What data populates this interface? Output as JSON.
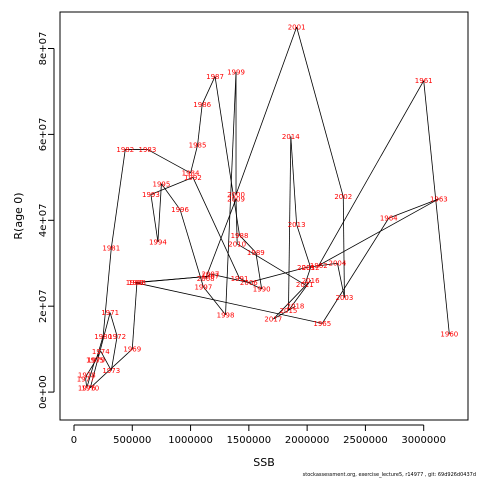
{
  "chart_data": {
    "type": "line",
    "title": "",
    "xlabel": "SSB",
    "ylabel": "R(age 0)",
    "xlim": [
      -120000,
      3380000
    ],
    "ylim": [
      -6500000,
      88500000
    ],
    "x_ticks": [
      0,
      500000,
      1000000,
      1500000,
      2000000,
      2500000,
      3000000
    ],
    "x_tick_labels": [
      "0",
      "500000",
      "1000000",
      "1500000",
      "2000000",
      "2500000",
      "3000000"
    ],
    "y_ticks": [
      0,
      20000000,
      40000000,
      60000000,
      80000000
    ],
    "y_tick_labels": [
      "0e+00",
      "2e+07",
      "4e+07",
      "6e+07",
      "8e+07"
    ],
    "grid": false,
    "series": [
      {
        "points": [
          {
            "label": "1960",
            "x": 3220000,
            "y": 13500000
          },
          {
            "label": "1961",
            "x": 3000000,
            "y": 72500000
          },
          {
            "label": "1962",
            "x": 2100000,
            "y": 29500000
          },
          {
            "label": "1963",
            "x": 3130000,
            "y": 45000000
          },
          {
            "label": "1964",
            "x": 2700000,
            "y": 40500000
          },
          {
            "label": "1965",
            "x": 2130000,
            "y": 16000000
          },
          {
            "label": "1966",
            "x": 520000,
            "y": 25500000
          },
          {
            "label": "1967",
            "x": 1170000,
            "y": 27000000
          },
          {
            "label": "1968",
            "x": 540000,
            "y": 25500000
          },
          {
            "label": "1969",
            "x": 500000,
            "y": 10000000
          },
          {
            "label": "1970",
            "x": 140000,
            "y": 1000000
          },
          {
            "label": "1971",
            "x": 310000,
            "y": 18500000
          },
          {
            "label": "1972",
            "x": 370000,
            "y": 13000000
          },
          {
            "label": "1973",
            "x": 320000,
            "y": 5000000
          },
          {
            "label": "1974",
            "x": 230000,
            "y": 9500000
          },
          {
            "label": "1975",
            "x": 180000,
            "y": 7500000
          },
          {
            "label": "1976",
            "x": 110000,
            "y": 1000000
          },
          {
            "label": "1977",
            "x": 100000,
            "y": 3000000
          },
          {
            "label": "1978",
            "x": 110000,
            "y": 4000000
          },
          {
            "label": "1979",
            "x": 190000,
            "y": 7500000
          },
          {
            "label": "1980",
            "x": 250000,
            "y": 13000000
          },
          {
            "label": "1981",
            "x": 320000,
            "y": 33500000
          },
          {
            "label": "1982",
            "x": 440000,
            "y": 56500000
          },
          {
            "label": "1983",
            "x": 630000,
            "y": 56500000
          },
          {
            "label": "1984",
            "x": 1000000,
            "y": 51000000
          },
          {
            "label": "1985",
            "x": 1060000,
            "y": 57500000
          },
          {
            "label": "1986",
            "x": 1100000,
            "y": 67000000
          },
          {
            "label": "1987",
            "x": 1210000,
            "y": 73500000
          },
          {
            "label": "1988",
            "x": 1420000,
            "y": 36500000
          },
          {
            "label": "1989",
            "x": 1560000,
            "y": 32500000
          },
          {
            "label": "1990",
            "x": 1610000,
            "y": 24000000
          },
          {
            "label": "1991",
            "x": 1420000,
            "y": 26500000
          },
          {
            "label": "1992",
            "x": 1020000,
            "y": 50000000
          },
          {
            "label": "1993",
            "x": 660000,
            "y": 46000000
          },
          {
            "label": "1994",
            "x": 720000,
            "y": 35000000
          },
          {
            "label": "1995",
            "x": 750000,
            "y": 48500000
          },
          {
            "label": "1996",
            "x": 910000,
            "y": 42500000
          },
          {
            "label": "1997",
            "x": 1110000,
            "y": 24500000
          },
          {
            "label": "1998",
            "x": 1300000,
            "y": 18000000
          },
          {
            "label": "1999",
            "x": 1390000,
            "y": 74500000
          },
          {
            "label": "2000",
            "x": 1390000,
            "y": 46000000
          },
          {
            "label": "2001",
            "x": 1910000,
            "y": 85000000
          },
          {
            "label": "2002",
            "x": 2310000,
            "y": 45500000
          },
          {
            "label": "2003",
            "x": 2320000,
            "y": 22000000
          },
          {
            "label": "2004",
            "x": 2260000,
            "y": 30000000
          },
          {
            "label": "2005",
            "x": 1990000,
            "y": 29000000
          },
          {
            "label": "2006",
            "x": 1500000,
            "y": 25500000
          },
          {
            "label": "2007",
            "x": 1170000,
            "y": 27500000
          },
          {
            "label": "2008",
            "x": 1130000,
            "y": 26500000
          },
          {
            "label": "2009",
            "x": 1390000,
            "y": 45000000
          },
          {
            "label": "2010",
            "x": 1400000,
            "y": 34500000
          },
          {
            "label": "2011",
            "x": 1980000,
            "y": 25000000
          },
          {
            "label": "2012",
            "x": 2030000,
            "y": 29000000
          },
          {
            "label": "2013",
            "x": 1910000,
            "y": 39000000
          },
          {
            "label": "2014",
            "x": 1860000,
            "y": 59500000
          },
          {
            "label": "2015",
            "x": 1840000,
            "y": 19000000
          },
          {
            "label": "2016",
            "x": 2030000,
            "y": 26000000
          },
          {
            "label": "2017",
            "x": 1710000,
            "y": 17000000
          },
          {
            "label": "2018",
            "x": 1900000,
            "y": 20000000
          }
        ]
      }
    ]
  },
  "footer_text": "stockassessment.org, exercise_lecture5, r14977 , git: 69d926d0437d"
}
